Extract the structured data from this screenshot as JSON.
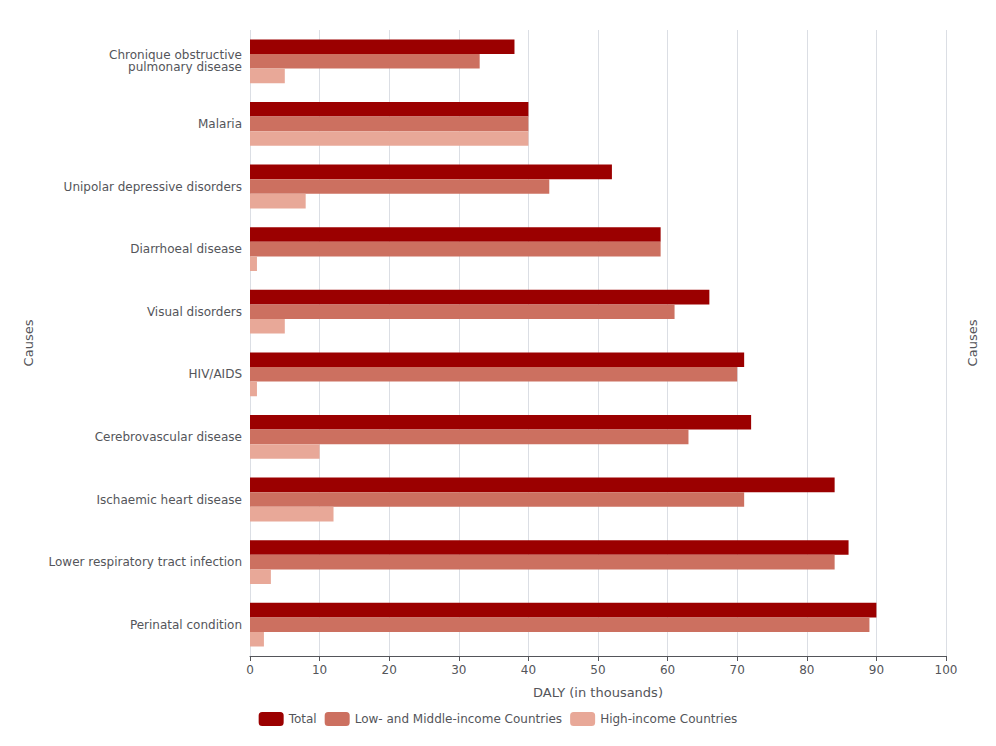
{
  "chart_data": {
    "type": "bar",
    "orientation": "horizontal",
    "categories": [
      "Perinatal condition",
      "Lower respiratory tract infection",
      "Ischaemic heart disease",
      "Cerebrovascular disease",
      "HIV/AIDS",
      "Visual disorders",
      "Diarrhoeal disease",
      "Unipolar depressive disorders",
      "Malaria",
      "Chronique obstructive\npulmonary disease"
    ],
    "series": [
      {
        "name": "Total",
        "color": "#9b0000",
        "values": [
          90,
          86,
          84,
          72,
          71,
          66,
          59,
          52,
          40,
          38
        ]
      },
      {
        "name": "Low- and Middle-income Countries",
        "color": "#cc7060",
        "values": [
          89,
          84,
          71,
          63,
          70,
          61,
          59,
          43,
          40,
          33
        ]
      },
      {
        "name": "High-income Countries",
        "color": "#e8a898",
        "values": [
          2,
          3,
          12,
          10,
          1,
          5,
          1,
          8,
          40,
          5
        ]
      }
    ],
    "xlabel": "DALY (in thousands)",
    "ylabel": "Causes",
    "xlim": [
      0,
      100
    ],
    "xticks": [
      0,
      10,
      20,
      30,
      40,
      50,
      60,
      70,
      80,
      90,
      100
    ],
    "grid": true,
    "legend": "bottom"
  }
}
